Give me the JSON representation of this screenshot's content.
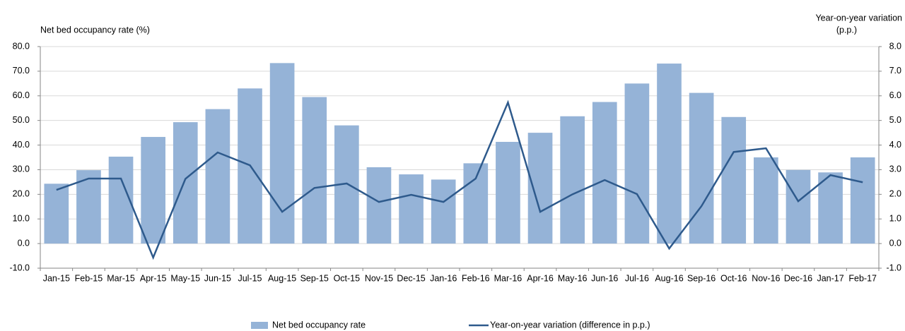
{
  "chart_data": {
    "type": "bar-line",
    "y_label": "Net bed occupancy rate (%)",
    "y2_label": [
      "Year-on-year variation",
      "(p.p.)"
    ],
    "categories": [
      "Jan-15",
      "Feb-15",
      "Mar-15",
      "Apr-15",
      "May-15",
      "Jun-15",
      "Jul-15",
      "Aug-15",
      "Sep-15",
      "Oct-15",
      "Nov-15",
      "Dec-15",
      "Jan-16",
      "Feb-16",
      "Mar-16",
      "Apr-16",
      "May-16",
      "Jun-16",
      "Jul-16",
      "Aug-16",
      "Sep-16",
      "Oct-16",
      "Nov-16",
      "Dec-16",
      "Jan-17",
      "Feb-17"
    ],
    "series": [
      {
        "name": "Net bed occupancy rate",
        "type": "bar",
        "color": "#95b3d7",
        "values": [
          24.3,
          29.8,
          35.3,
          43.3,
          49.3,
          54.6,
          63.0,
          73.3,
          59.5,
          48.0,
          31.0,
          28.1,
          26.0,
          32.6,
          41.3,
          45.0,
          51.7,
          57.5,
          65.0,
          73.1,
          61.2,
          51.4,
          35.0,
          29.9,
          28.9,
          35.0
        ]
      },
      {
        "name": "Year-on-year variation (difference in p.p.)",
        "type": "line",
        "axis": "y2",
        "color": "#2e5a8c",
        "values": [
          2.18,
          2.64,
          2.64,
          -0.57,
          2.63,
          3.7,
          3.18,
          1.29,
          2.26,
          2.44,
          1.69,
          1.98,
          1.69,
          2.64,
          5.73,
          1.29,
          2.0,
          2.58,
          2.01,
          -0.2,
          1.52,
          3.72,
          3.87,
          1.72,
          2.78,
          2.49
        ]
      }
    ],
    "ylim": [
      -10,
      80
    ],
    "yticks": [
      {
        "value": -10,
        "label": "-10.0"
      },
      {
        "value": 0,
        "label": "0.0"
      },
      {
        "value": 10,
        "label": "10.0"
      },
      {
        "value": 20,
        "label": "20.0"
      },
      {
        "value": 30,
        "label": "30.0"
      },
      {
        "value": 40,
        "label": "40.0"
      },
      {
        "value": 50,
        "label": "50.0"
      },
      {
        "value": 60,
        "label": "60.0"
      },
      {
        "value": 70,
        "label": "70.0"
      },
      {
        "value": 80,
        "label": "80.0"
      }
    ],
    "y2lim": [
      -1,
      8
    ],
    "y2ticks": [
      {
        "value": -1,
        "label": "-1.0"
      },
      {
        "value": 0,
        "label": "0.0"
      },
      {
        "value": 1,
        "label": "1.0"
      },
      {
        "value": 2,
        "label": "2.0"
      },
      {
        "value": 3,
        "label": "3.0"
      },
      {
        "value": 4,
        "label": "4.0"
      },
      {
        "value": 5,
        "label": "5.0"
      },
      {
        "value": 6,
        "label": "6.0"
      },
      {
        "value": 7,
        "label": "7.0"
      },
      {
        "value": 8,
        "label": "8.0"
      }
    ],
    "grid": true
  }
}
